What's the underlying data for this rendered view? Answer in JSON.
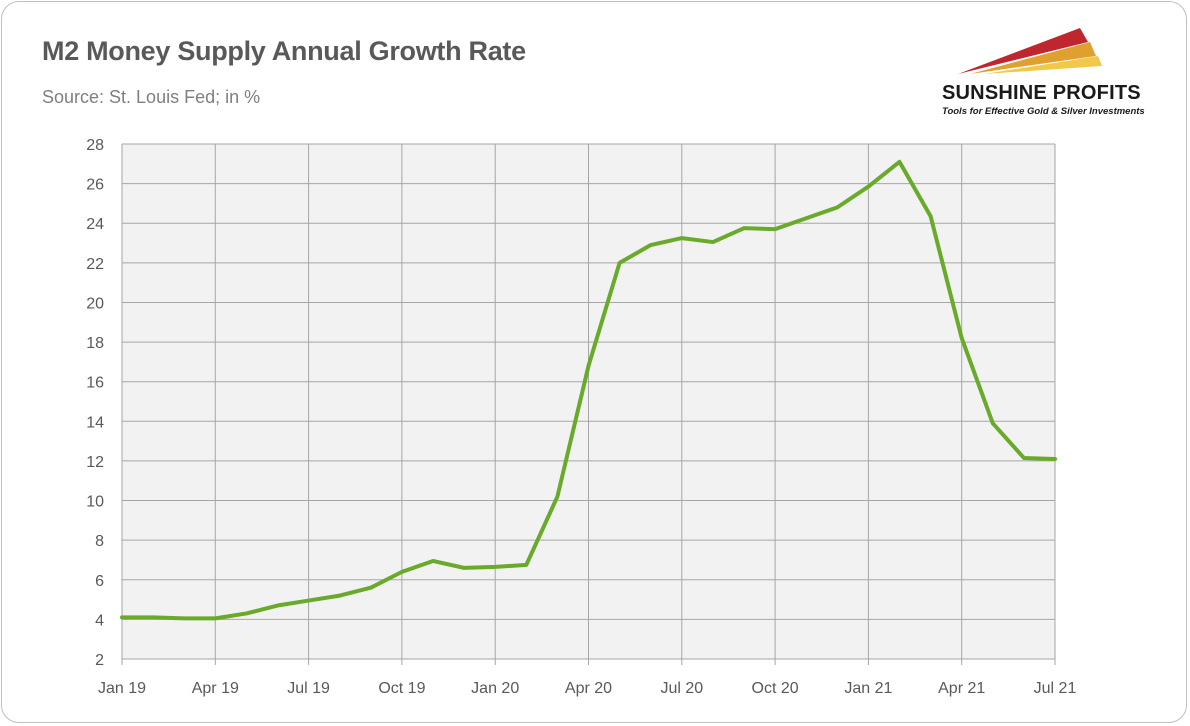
{
  "header": {
    "title": "M2 Money Supply Annual Growth Rate",
    "subtitle": "Source: St. Louis Fed; in %"
  },
  "logo": {
    "name": "SUNSHINE PROFITS",
    "tagline": "Tools for Effective Gold & Silver Investments",
    "colors": [
      "#c0262d",
      "#e0a030",
      "#f2c84b"
    ]
  },
  "colors": {
    "line": "#6aaa2a",
    "plot_background": "#f2f2f2",
    "grid": "#a6a6a6"
  },
  "chart_data": {
    "type": "line",
    "title": "M2 Money Supply Annual Growth Rate",
    "subtitle": "Source: St. Louis Fed; in %",
    "xlabel": "",
    "ylabel": "",
    "x_tick_labels": [
      "Jan 19",
      "Apr 19",
      "Jul 19",
      "Oct 19",
      "Jan 20",
      "Apr 20",
      "Jul 20",
      "Oct 20",
      "Jan 21",
      "Apr 21",
      "Jul 21"
    ],
    "y_ticks": [
      2,
      4,
      6,
      8,
      10,
      12,
      14,
      16,
      18,
      20,
      22,
      24,
      26,
      28
    ],
    "ylim": [
      2,
      28
    ],
    "grid": true,
    "legend": "none",
    "series": [
      {
        "x": [
          "Jan 19",
          "Feb 19",
          "Mar 19",
          "Apr 19",
          "May 19",
          "Jun 19",
          "Jul 19",
          "Aug 19",
          "Sep 19",
          "Oct 19",
          "Nov 19",
          "Dec 19",
          "Jan 20",
          "Feb 20",
          "Mar 20",
          "Apr 20",
          "May 20",
          "Jun 20",
          "Jul 20",
          "Aug 20",
          "Sep 20",
          "Oct 20",
          "Nov 20",
          "Dec 20",
          "Jan 21",
          "Feb 21",
          "Mar 21",
          "Apr 21",
          "May 21",
          "Jun 21",
          "Jul 21"
        ],
        "values": [
          4.1,
          4.1,
          4.05,
          4.05,
          4.3,
          4.7,
          4.95,
          5.2,
          5.6,
          6.4,
          6.95,
          6.6,
          6.65,
          6.75,
          10.2,
          16.8,
          22.0,
          22.9,
          23.25,
          23.05,
          23.75,
          23.7,
          24.25,
          24.8,
          25.85,
          27.1,
          24.35,
          18.2,
          13.9,
          12.15,
          12.1
        ]
      }
    ]
  }
}
